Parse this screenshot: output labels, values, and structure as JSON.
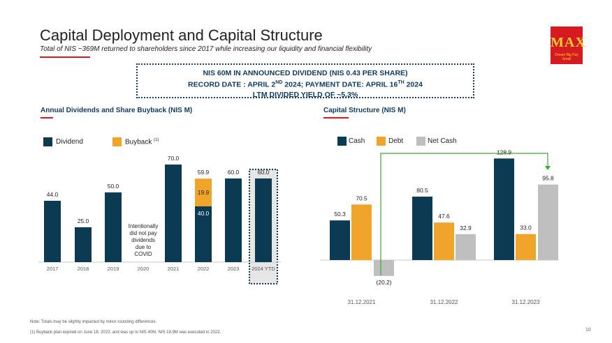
{
  "header": {
    "title": "Capital Deployment and Capital Structure",
    "subtitle": "Total of NIS ~369M returned to shareholders since 2017 while increasing our liquidity and financial flexibility"
  },
  "logo": {
    "text": "MAX",
    "tagline": "Dream Big Pay Small"
  },
  "callout": {
    "line1": "NIS 60M IN ANNOUNCED DIVIDEND (NIS 0.43 PER SHARE)",
    "line2_a": "RECORD DATE : APRIL 2",
    "line2_sup1": "ND",
    "line2_b": " 2024; PAYMENT DATE: APRIL 16",
    "line2_sup2": "TH",
    "line2_c": " 2024",
    "line3": "LTM DIVIDED YIELD OF ~5.3%"
  },
  "colors": {
    "navy": "#0b3a53",
    "orange": "#f0a52a",
    "gray": "#bfbfbf",
    "red": "#d71920",
    "green": "#3aaa35"
  },
  "chart_data": [
    {
      "type": "bar",
      "title": "Annual Dividends and Share Buyback (NIS M)",
      "categories": [
        "2017",
        "2018",
        "2019",
        "2020",
        "2021",
        "2022",
        "2023",
        "2024 YTD"
      ],
      "series": [
        {
          "name": "Dividend",
          "color": "#0b3a53",
          "values": [
            44.0,
            25.0,
            50.0,
            0,
            70.0,
            40.0,
            60.0,
            60.0
          ]
        },
        {
          "name": "Buyback",
          "color": "#f0a52a",
          "values": [
            0,
            0,
            0,
            0,
            0,
            19.9,
            0,
            0
          ]
        }
      ],
      "legend_sup": "(1)",
      "totals": [
        "44.0",
        "25.0",
        "50.0",
        "",
        "70.0",
        "59.9",
        "60.0",
        "60.0"
      ],
      "segment_labels": {
        "2022": {
          "Dividend": "40.0",
          "Buyback": "19.9"
        }
      },
      "annotation": "Intentionally did not pay dividends due to COVID",
      "highlighted_category": "2024 YTD",
      "stacked": true,
      "grid": false,
      "legend_position": "top-left"
    },
    {
      "type": "bar",
      "title": "Capital Structure (NIS M)",
      "categories": [
        "31.12.2021",
        "31.12.2022",
        "31.12.2023"
      ],
      "series": [
        {
          "name": "Cash",
          "color": "#0b3a53",
          "values": [
            50.3,
            80.5,
            128.9
          ]
        },
        {
          "name": "Debt",
          "color": "#f0a52a",
          "values": [
            70.5,
            47.6,
            33.0
          ]
        },
        {
          "name": "Net Cash",
          "color": "#bfbfbf",
          "values": [
            -20.2,
            32.9,
            95.8
          ]
        }
      ],
      "value_labels": [
        [
          "50.3",
          "80.5",
          "128.9"
        ],
        [
          "70.5",
          "47.6",
          "33.0"
        ],
        [
          "(20.2)",
          "32.9",
          "95.8"
        ]
      ],
      "grid": false,
      "legend_position": "top-left"
    }
  ],
  "notes": {
    "note1": "Note: Totals may be slightly impacted by minor rounding differences.",
    "note2": "(1) Buyback plan expired on June 18, 2023, and was up to NIS 40M. NIS 19.9M was executed in 2022."
  },
  "page_number": "10"
}
